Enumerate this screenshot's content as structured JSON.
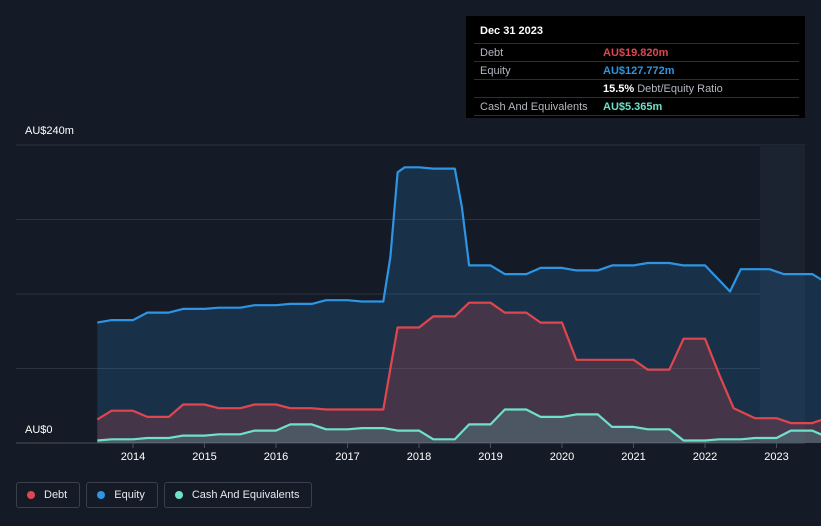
{
  "tooltip": {
    "date": "Dec 31 2023",
    "rows": [
      {
        "label": "Debt",
        "value": "AU$19.820m",
        "color": "#e0464e"
      },
      {
        "label": "Equity",
        "value": "AU$127.772m",
        "color": "#2d95e3"
      },
      {
        "label": "",
        "value": "15.5%",
        "sub": "Debt/Equity Ratio",
        "color": "#ffffff"
      },
      {
        "label": "Cash And Equivalents",
        "value": "AU$5.365m",
        "color": "#6fe0cc"
      }
    ]
  },
  "legend": [
    {
      "label": "Debt",
      "color": "#e0464e"
    },
    {
      "label": "Equity",
      "color": "#2d95e3"
    },
    {
      "label": "Cash And Equivalents",
      "color": "#6fe0cc"
    }
  ],
  "chart_data": {
    "type": "area",
    "ylabel_top": "AU$240m",
    "ylabel_bottom": "AU$0",
    "ylim": [
      0,
      240
    ],
    "xlim": [
      2013.5,
      2024.0
    ],
    "x_ticks": [
      "2014",
      "2015",
      "2016",
      "2017",
      "2018",
      "2019",
      "2020",
      "2021",
      "2022",
      "2023"
    ],
    "grid": true,
    "series": [
      {
        "name": "Equity",
        "color": "#2d95e3",
        "points": [
          [
            2013.5,
            97
          ],
          [
            2013.7,
            99
          ],
          [
            2014.0,
            99
          ],
          [
            2014.2,
            105
          ],
          [
            2014.5,
            105
          ],
          [
            2014.7,
            108
          ],
          [
            2015.0,
            108
          ],
          [
            2015.2,
            109
          ],
          [
            2015.5,
            109
          ],
          [
            2015.7,
            111
          ],
          [
            2016.0,
            111
          ],
          [
            2016.2,
            112
          ],
          [
            2016.5,
            112
          ],
          [
            2016.7,
            115
          ],
          [
            2017.0,
            115
          ],
          [
            2017.2,
            114
          ],
          [
            2017.5,
            114
          ],
          [
            2017.6,
            150
          ],
          [
            2017.7,
            218
          ],
          [
            2017.8,
            222
          ],
          [
            2018.0,
            222
          ],
          [
            2018.2,
            221
          ],
          [
            2018.5,
            221
          ],
          [
            2018.6,
            190
          ],
          [
            2018.7,
            143
          ],
          [
            2018.8,
            143
          ],
          [
            2019.0,
            143
          ],
          [
            2019.2,
            136
          ],
          [
            2019.5,
            136
          ],
          [
            2019.7,
            141
          ],
          [
            2020.0,
            141
          ],
          [
            2020.2,
            139
          ],
          [
            2020.5,
            139
          ],
          [
            2020.7,
            143
          ],
          [
            2021.0,
            143
          ],
          [
            2021.2,
            145
          ],
          [
            2021.5,
            145
          ],
          [
            2021.7,
            143
          ],
          [
            2022.0,
            143
          ],
          [
            2022.2,
            131
          ],
          [
            2022.35,
            122
          ],
          [
            2022.5,
            140
          ],
          [
            2022.7,
            140
          ],
          [
            2022.9,
            140
          ],
          [
            2023.1,
            136
          ],
          [
            2023.5,
            136
          ],
          [
            2023.7,
            129
          ],
          [
            2023.95,
            128
          ]
        ]
      },
      {
        "name": "Debt",
        "color": "#e0464e",
        "points": [
          [
            2013.5,
            19
          ],
          [
            2013.7,
            26
          ],
          [
            2014.0,
            26
          ],
          [
            2014.2,
            21
          ],
          [
            2014.5,
            21
          ],
          [
            2014.7,
            31
          ],
          [
            2015.0,
            31
          ],
          [
            2015.2,
            28
          ],
          [
            2015.5,
            28
          ],
          [
            2015.7,
            31
          ],
          [
            2016.0,
            31
          ],
          [
            2016.2,
            28
          ],
          [
            2016.5,
            28
          ],
          [
            2016.7,
            27
          ],
          [
            2017.0,
            27
          ],
          [
            2017.2,
            27
          ],
          [
            2017.5,
            27
          ],
          [
            2017.6,
            60
          ],
          [
            2017.7,
            93
          ],
          [
            2017.8,
            93
          ],
          [
            2018.0,
            93
          ],
          [
            2018.2,
            102
          ],
          [
            2018.5,
            102
          ],
          [
            2018.7,
            113
          ],
          [
            2019.0,
            113
          ],
          [
            2019.2,
            105
          ],
          [
            2019.5,
            105
          ],
          [
            2019.7,
            97
          ],
          [
            2020.0,
            97
          ],
          [
            2020.2,
            67
          ],
          [
            2020.5,
            67
          ],
          [
            2020.7,
            67
          ],
          [
            2021.0,
            67
          ],
          [
            2021.2,
            59
          ],
          [
            2021.5,
            59
          ],
          [
            2021.7,
            84
          ],
          [
            2022.0,
            84
          ],
          [
            2022.2,
            55
          ],
          [
            2022.4,
            28
          ],
          [
            2022.7,
            20
          ],
          [
            2023.0,
            20
          ],
          [
            2023.2,
            16
          ],
          [
            2023.5,
            16
          ],
          [
            2023.7,
            20
          ],
          [
            2023.95,
            20
          ]
        ]
      },
      {
        "name": "Cash And Equivalents",
        "color": "#6fe0cc",
        "points": [
          [
            2013.5,
            2
          ],
          [
            2013.7,
            3
          ],
          [
            2014.0,
            3
          ],
          [
            2014.2,
            4
          ],
          [
            2014.5,
            4
          ],
          [
            2014.7,
            6
          ],
          [
            2015.0,
            6
          ],
          [
            2015.2,
            7
          ],
          [
            2015.5,
            7
          ],
          [
            2015.7,
            10
          ],
          [
            2016.0,
            10
          ],
          [
            2016.2,
            15
          ],
          [
            2016.5,
            15
          ],
          [
            2016.7,
            11
          ],
          [
            2017.0,
            11
          ],
          [
            2017.2,
            12
          ],
          [
            2017.5,
            12
          ],
          [
            2017.7,
            10
          ],
          [
            2018.0,
            10
          ],
          [
            2018.2,
            3
          ],
          [
            2018.5,
            3
          ],
          [
            2018.7,
            15
          ],
          [
            2019.0,
            15
          ],
          [
            2019.2,
            27
          ],
          [
            2019.5,
            27
          ],
          [
            2019.7,
            21
          ],
          [
            2020.0,
            21
          ],
          [
            2020.2,
            23
          ],
          [
            2020.5,
            23
          ],
          [
            2020.7,
            13
          ],
          [
            2021.0,
            13
          ],
          [
            2021.2,
            11
          ],
          [
            2021.5,
            11
          ],
          [
            2021.7,
            2
          ],
          [
            2022.0,
            2
          ],
          [
            2022.2,
            3
          ],
          [
            2022.5,
            3
          ],
          [
            2022.7,
            4
          ],
          [
            2023.0,
            4
          ],
          [
            2023.2,
            10
          ],
          [
            2023.5,
            10
          ],
          [
            2023.7,
            5
          ],
          [
            2023.95,
            5
          ]
        ]
      }
    ]
  }
}
